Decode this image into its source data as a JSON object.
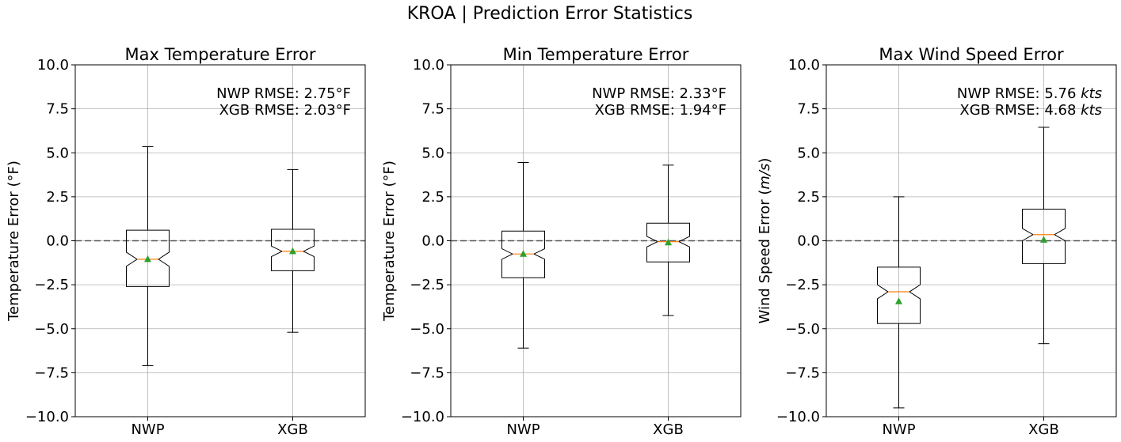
{
  "figure": {
    "suptitle": "KROA | Prediction Error Statistics"
  },
  "chart_data": [
    {
      "type": "boxplot",
      "title": "Max Temperature Error",
      "xlabel": "",
      "ylabel": "Temperature Error (°F)",
      "ylim": [
        -10,
        10
      ],
      "yticks": [
        "−10.0",
        "−7.5",
        "−5.0",
        "−2.5",
        "0.0",
        "2.5",
        "5.0",
        "7.5",
        "10.0"
      ],
      "categories": [
        "NWP",
        "XGB"
      ],
      "grid": true,
      "zero_line": 0,
      "annotation": [
        "NWP RMSE: 2.75°F",
        "XGB RMSE: 2.03°F"
      ],
      "annotation_position": "top-right",
      "boxes": [
        {
          "name": "NWP",
          "whisker_low": -7.1,
          "q1": -2.6,
          "median": -1.05,
          "q3": 0.6,
          "whisker_high": 5.35,
          "mean": -1.05,
          "notch_low": -1.45,
          "notch_high": -0.65
        },
        {
          "name": "XGB",
          "whisker_low": -5.2,
          "q1": -1.7,
          "median": -0.6,
          "q3": 0.65,
          "whisker_high": 4.05,
          "mean": -0.6,
          "notch_low": -0.9,
          "notch_high": -0.3
        }
      ]
    },
    {
      "type": "boxplot",
      "title": "Min Temperature Error",
      "xlabel": "",
      "ylabel": "Temperature Error (°F)",
      "ylim": [
        -10,
        10
      ],
      "yticks": [
        "−10.0",
        "−7.5",
        "−5.0",
        "−2.5",
        "0.0",
        "2.5",
        "5.0",
        "7.5",
        "10.0"
      ],
      "categories": [
        "NWP",
        "XGB"
      ],
      "grid": true,
      "zero_line": 0,
      "annotation": [
        "NWP RMSE: 2.33°F",
        "XGB RMSE: 1.94°F"
      ],
      "annotation_position": "top-right",
      "boxes": [
        {
          "name": "NWP",
          "whisker_low": -6.1,
          "q1": -2.1,
          "median": -0.75,
          "q3": 0.55,
          "whisker_high": 4.45,
          "mean": -0.75,
          "notch_low": -1.05,
          "notch_high": -0.45
        },
        {
          "name": "XGB",
          "whisker_low": -4.25,
          "q1": -1.2,
          "median": -0.05,
          "q3": 1.0,
          "whisker_high": 4.3,
          "mean": -0.1,
          "notch_low": -0.35,
          "notch_high": 0.25
        }
      ]
    },
    {
      "type": "boxplot",
      "title": "Max Wind Speed Error",
      "xlabel": "",
      "ylabel": "Wind Speed Error (m/s)",
      "ylabel_parts": [
        "Wind Speed Error (",
        "m/s",
        ")"
      ],
      "ylim": [
        -10,
        10
      ],
      "yticks": [
        "−10.0",
        "−7.5",
        "−5.0",
        "−2.5",
        "0.0",
        "2.5",
        "5.0",
        "7.5",
        "10.0"
      ],
      "categories": [
        "NWP",
        "XGB"
      ],
      "grid": true,
      "zero_line": 0,
      "annotation": [
        "NWP RMSE: 5.76 kts",
        "XGB RMSE: 4.68 kts"
      ],
      "annotation_parts": [
        [
          "NWP RMSE: 5.76 ",
          "kts"
        ],
        [
          "XGB RMSE: 4.68 ",
          "kts"
        ]
      ],
      "annotation_position": "top-right",
      "boxes": [
        {
          "name": "NWP",
          "whisker_low": -9.5,
          "q1": -4.7,
          "median": -2.9,
          "q3": -1.5,
          "whisker_high": 2.5,
          "mean": -3.45,
          "notch_low": -3.3,
          "notch_high": -2.5
        },
        {
          "name": "XGB",
          "whisker_low": -5.85,
          "q1": -1.3,
          "median": 0.35,
          "q3": 1.8,
          "whisker_high": 6.45,
          "mean": 0.05,
          "notch_low": 0.0,
          "notch_high": 0.7
        }
      ]
    }
  ]
}
